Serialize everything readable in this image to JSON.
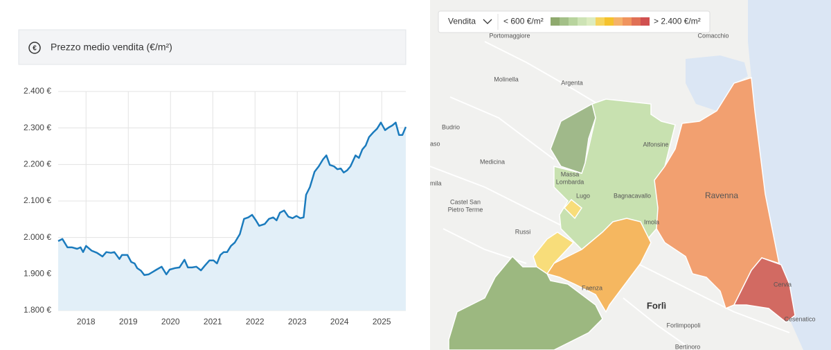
{
  "header": {
    "icon": "€",
    "title": "Prezzo medio vendita (€/m²)"
  },
  "chart_data": {
    "type": "line",
    "color": "#1b7bbd",
    "fill": true,
    "grid": true,
    "x": [
      2017.34,
      2017.44,
      2017.56,
      2017.67,
      2017.79,
      2017.87,
      2017.93,
      2018.0,
      2018.13,
      2018.26,
      2018.39,
      2018.48,
      2018.59,
      2018.67,
      2018.79,
      2018.85,
      2018.98,
      2019.07,
      2019.15,
      2019.21,
      2019.3,
      2019.38,
      2019.48,
      2019.57,
      2019.67,
      2019.79,
      2019.9,
      2019.98,
      2020.1,
      2020.21,
      2020.33,
      2020.41,
      2020.51,
      2020.61,
      2020.72,
      2020.82,
      2020.92,
      2021.02,
      2021.1,
      2021.18,
      2021.26,
      2021.34,
      2021.43,
      2021.52,
      2021.64,
      2021.74,
      2021.84,
      2021.93,
      2022.02,
      2022.1,
      2022.23,
      2022.33,
      2022.43,
      2022.51,
      2022.59,
      2022.69,
      2022.79,
      2022.89,
      2022.98,
      2023.07,
      2023.15,
      2023.21,
      2023.3,
      2023.41,
      2023.51,
      2023.61,
      2023.69,
      2023.77,
      2023.87,
      2023.95,
      2024.03,
      2024.1,
      2024.18,
      2024.26,
      2024.38,
      2024.46,
      2024.54,
      2024.62,
      2024.7,
      2024.8,
      2024.89,
      2024.98,
      2025.08,
      2025.16,
      2025.25,
      2025.33,
      2025.41,
      2025.49,
      2025.57
    ],
    "values": [
      1990,
      1996,
      1973,
      1973,
      1969,
      1973,
      1960,
      1977,
      1964,
      1958,
      1948,
      1960,
      1958,
      1960,
      1941,
      1952,
      1952,
      1933,
      1929,
      1916,
      1909,
      1897,
      1899,
      1905,
      1912,
      1920,
      1899,
      1912,
      1916,
      1918,
      1939,
      1918,
      1918,
      1920,
      1910,
      1924,
      1937,
      1937,
      1929,
      1952,
      1960,
      1960,
      1977,
      1986,
      2009,
      2051,
      2055,
      2062,
      2047,
      2032,
      2037,
      2051,
      2055,
      2047,
      2068,
      2074,
      2057,
      2053,
      2059,
      2053,
      2055,
      2117,
      2138,
      2180,
      2195,
      2214,
      2225,
      2199,
      2195,
      2187,
      2189,
      2178,
      2184,
      2195,
      2225,
      2218,
      2241,
      2252,
      2275,
      2288,
      2298,
      2315,
      2294,
      2301,
      2307,
      2315,
      2281,
      2281,
      2303
    ],
    "xlim": [
      2017.34,
      2025.57
    ],
    "xticks": [
      2018,
      2019,
      2020,
      2021,
      2022,
      2023,
      2024,
      2025
    ],
    "ylim": [
      1800,
      2400
    ],
    "yticks": [
      {
        "value": 1800,
        "label": "1.800 €"
      },
      {
        "value": 1900,
        "label": "1.900 €"
      },
      {
        "value": 2000,
        "label": "2.000 €"
      },
      {
        "value": 2100,
        "label": "2.100 €"
      },
      {
        "value": 2200,
        "label": "2.200 €"
      },
      {
        "value": 2300,
        "label": "2.300 €"
      },
      {
        "value": 2400,
        "label": "2.400 €"
      }
    ]
  },
  "map": {
    "mode": "Vendita",
    "legend_min": "< 600 €/m²",
    "legend_max": "> 2.400 €/m²",
    "labels": [
      "Portomaggiore",
      "Comacchio",
      "Molinella",
      "Argenta",
      "Budrio",
      "aso",
      "Medicina",
      "mila",
      "Alfonsine",
      "Massa",
      "Lombarda",
      "Lugo",
      "Bagnacavallo",
      "Ravenna",
      "Castel San",
      "Pietro Terme",
      "Imola",
      "Russi",
      "Faenza",
      "Cervia",
      "Forlì",
      "Forlimpopoli",
      "Bertinoro",
      "Cesenatico"
    ]
  }
}
